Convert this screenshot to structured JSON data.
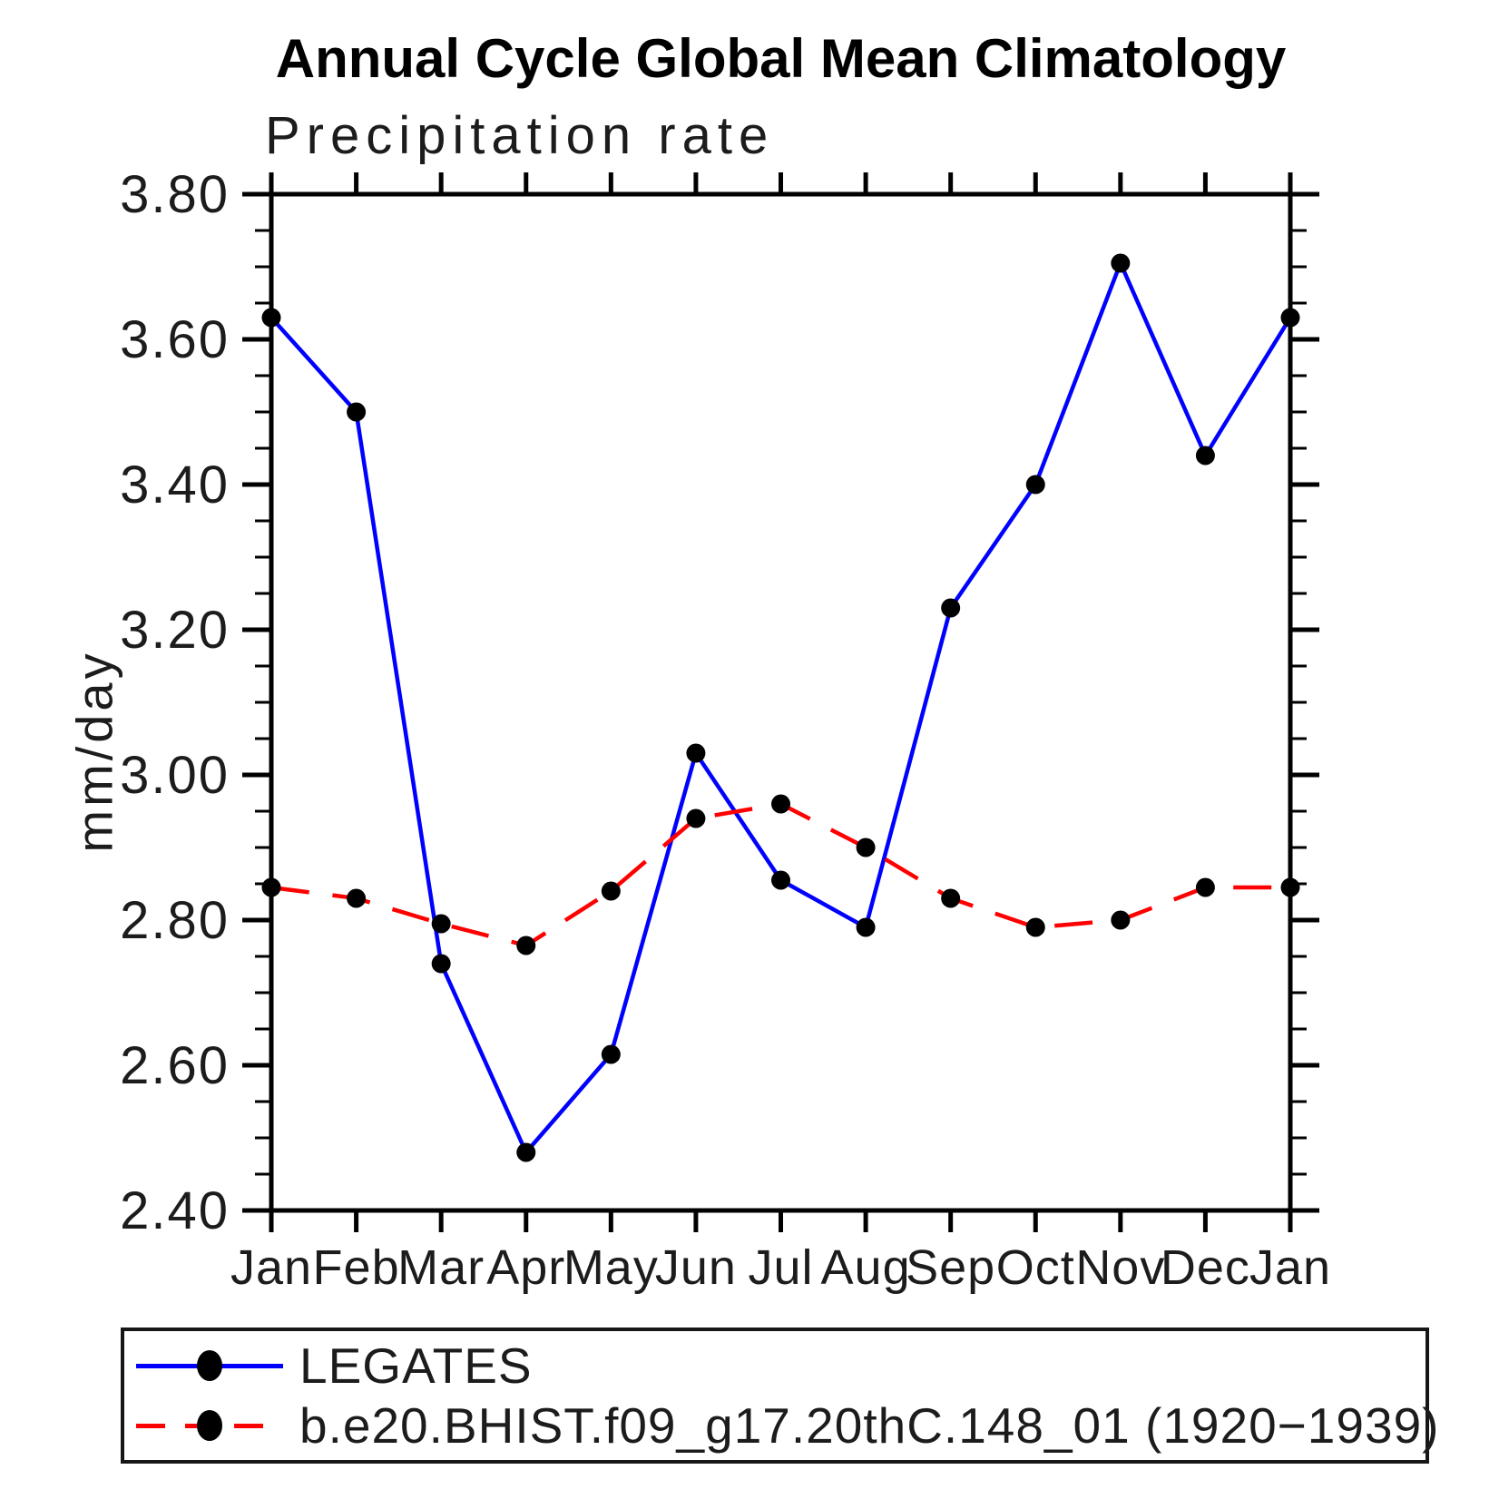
{
  "chart_data": {
    "type": "line",
    "title": "Annual Cycle Global Mean Climatology",
    "subtitle": "Precipitation rate",
    "ylabel": "mm/day",
    "categories": [
      "Jan",
      "Feb",
      "Mar",
      "Apr",
      "May",
      "Jun",
      "Jul",
      "Aug",
      "Sep",
      "Oct",
      "Nov",
      "Dec",
      "Jan"
    ],
    "ylim": [
      2.4,
      3.8
    ],
    "ytick_labels": [
      "2.40",
      "2.60",
      "2.80",
      "3.00",
      "3.20",
      "3.40",
      "3.60",
      "3.80"
    ],
    "ytick_step": 0.2,
    "yminor_step": 0.05,
    "grid": "off",
    "legend_position": "bottom",
    "marker_color": "#000000",
    "axis_color": "#000000",
    "series": [
      {
        "name": "LEGATES",
        "color": "#0000ff",
        "line_style": "solid",
        "marker": "filled-circle",
        "values": [
          3.63,
          3.5,
          2.74,
          2.48,
          2.615,
          3.03,
          2.855,
          2.79,
          3.23,
          3.4,
          3.705,
          3.44,
          3.63
        ]
      },
      {
        "name": "b.e20.BHIST.f09_g17.20thC.148_01 (1920−1939)",
        "color": "#ff0000",
        "line_style": "dashed",
        "marker": "filled-circle",
        "values": [
          2.845,
          2.83,
          2.795,
          2.765,
          2.84,
          2.94,
          2.96,
          2.9,
          2.83,
          2.79,
          2.8,
          2.845,
          2.845
        ]
      }
    ]
  }
}
